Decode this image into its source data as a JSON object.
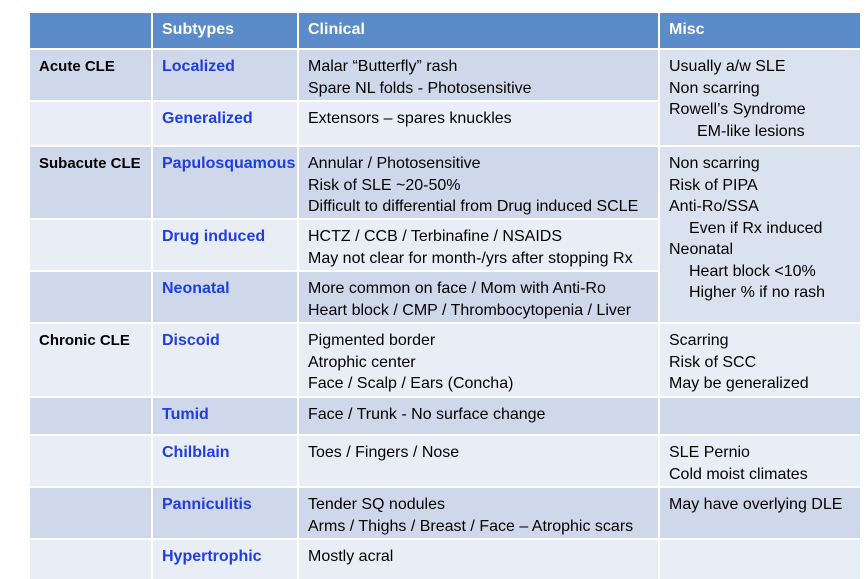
{
  "header": {
    "col0": "",
    "col1": "Subtypes",
    "col2": "Clinical",
    "col3": "Misc"
  },
  "groups": [
    {
      "name": "Acute CLE",
      "misc": [
        "Usually a/w SLE",
        "Non scarring",
        "Rowell’s Syndrome",
        "EM-like lesions"
      ],
      "rows": [
        {
          "subtype": "Localized",
          "clinical": [
            "Malar “Butterfly” rash",
            "Spare NL folds - Photosensitive"
          ]
        },
        {
          "subtype": "Generalized",
          "clinical": [
            "Extensors – spares knuckles"
          ]
        }
      ]
    },
    {
      "name": "Subacute CLE",
      "misc": [
        "Non scarring",
        "Risk of PIPA",
        "Anti-Ro/SSA",
        "Even if Rx induced",
        "Neonatal",
        "Heart block <10%",
        "Higher % if no rash"
      ],
      "rows": [
        {
          "subtype": "Papulosquamous",
          "clinical": [
            "Annular / Photosensitive",
            "Risk of SLE ~20-50%",
            "Difficult to differential from Drug induced SCLE"
          ]
        },
        {
          "subtype": "Drug induced",
          "clinical": [
            "HCTZ / CCB / Terbinafine / NSAIDS",
            "May not clear for month-/yrs after stopping Rx"
          ]
        },
        {
          "subtype": "Neonatal",
          "clinical": [
            "More common on face / Mom with Anti-Ro",
            "Heart block / CMP / Thrombocytopenia / Liver"
          ]
        }
      ]
    },
    {
      "name": "Chronic CLE",
      "rows": [
        {
          "subtype": "Discoid",
          "clinical": [
            "Pigmented border",
            "Atrophic center",
            "Face / Scalp / Ears (Concha)"
          ],
          "misc": [
            "Scarring",
            "Risk of SCC",
            "May be generalized"
          ]
        },
        {
          "subtype": "Tumid",
          "clinical": [
            "Face / Trunk - No surface change"
          ],
          "misc": []
        },
        {
          "subtype": "Chilblain",
          "clinical": [
            "Toes / Fingers / Nose"
          ],
          "misc": [
            "SLE Pernio",
            "Cold moist climates"
          ]
        },
        {
          "subtype": "Panniculitis",
          "clinical": [
            "Tender SQ nodules",
            "Arms / Thighs / Breast / Face – Atrophic scars"
          ],
          "misc": [
            "May have overlying DLE"
          ]
        },
        {
          "subtype": "Hypertrophic",
          "clinical": [
            "Mostly acral"
          ],
          "misc": []
        }
      ]
    }
  ]
}
